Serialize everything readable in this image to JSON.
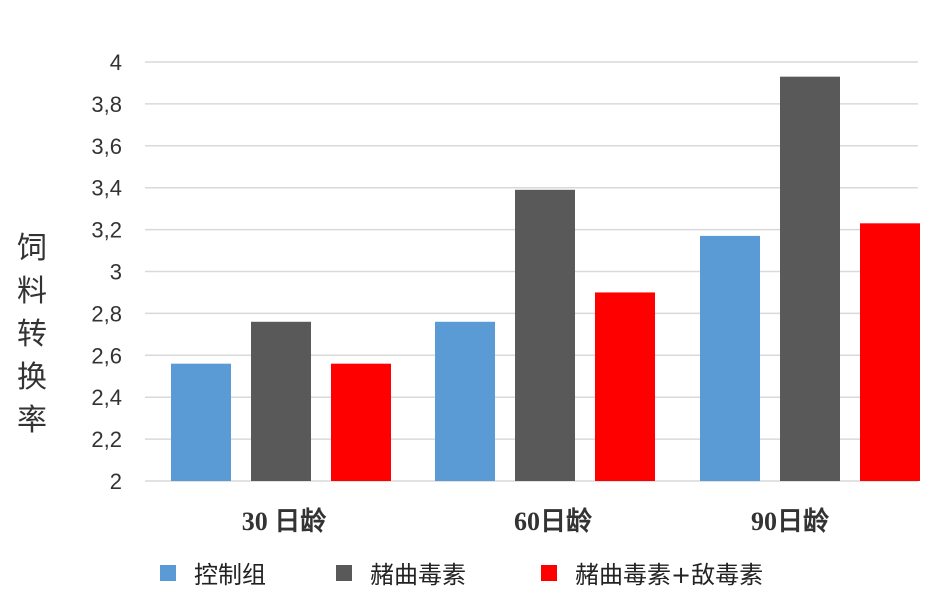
{
  "chart_data": {
    "type": "bar",
    "ylabel": "饲料转换率",
    "xlabel": "",
    "title": "",
    "categories": [
      "30 日龄",
      "60日龄",
      "90日龄"
    ],
    "series": [
      {
        "name": "控制组",
        "color": "#5b9bd5",
        "values": [
          2.56,
          2.76,
          3.17
        ]
      },
      {
        "name": "赭曲毒素",
        "color": "#595959",
        "values": [
          2.76,
          3.39,
          3.93
        ]
      },
      {
        "name": "赭曲毒素+敌毒素",
        "color": "#ff0000",
        "values": [
          2.56,
          2.9,
          3.23
        ]
      }
    ],
    "ylim": [
      2,
      4
    ],
    "yticks": [
      2,
      2.2,
      2.4,
      2.6,
      2.8,
      3,
      3.2,
      3.4,
      3.6,
      3.8,
      4
    ],
    "ytick_labels": [
      "2",
      "2,2",
      "2,4",
      "2,6",
      "2,8",
      "3",
      "3,2",
      "3,4",
      "3,6",
      "3,8",
      "4"
    ],
    "grid": true,
    "legend_position": "bottom",
    "gridline_color": "#d9d9d9"
  }
}
